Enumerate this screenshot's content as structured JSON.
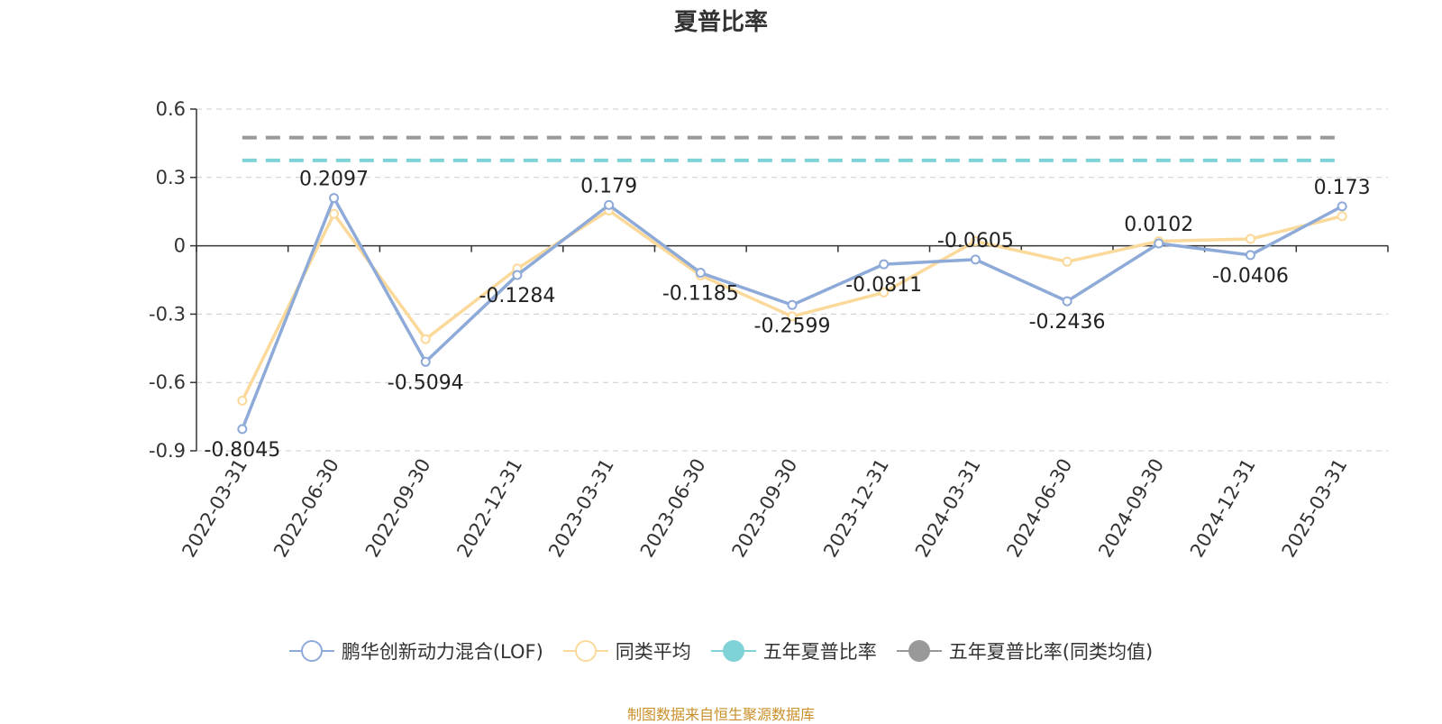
{
  "chart_data": {
    "type": "line",
    "title": "夏普比率",
    "categories": [
      "2022-03-31",
      "2022-06-30",
      "2022-09-30",
      "2022-12-31",
      "2023-03-31",
      "2023-06-30",
      "2023-09-30",
      "2023-12-31",
      "2024-03-31",
      "2024-06-30",
      "2024-09-30",
      "2024-12-31",
      "2025-03-31"
    ],
    "ylim": [
      -0.9,
      0.6
    ],
    "yticks": [
      "0.6",
      "0.3",
      "0",
      "-0.3",
      "-0.6",
      "-0.9"
    ],
    "grid": true,
    "legend_position": "bottom",
    "series": [
      {
        "name": "鹏华创新动力混合(LOF)",
        "kind": "line",
        "color": "#8eaad8",
        "values": [
          -0.8045,
          0.2097,
          -0.5094,
          -0.1284,
          0.179,
          -0.1185,
          -0.2599,
          -0.0811,
          -0.0605,
          -0.2436,
          0.0102,
          -0.0406,
          0.173
        ],
        "labels": [
          "-0.8045",
          "0.2097",
          "-0.5094",
          "-0.1284",
          "0.179",
          "-0.1185",
          "-0.2599",
          "-0.0811",
          "-0.0605",
          "-0.2436",
          "0.0102",
          "-0.0406",
          "0.173"
        ]
      },
      {
        "name": "同类平均",
        "kind": "line",
        "color": "#fbd99a",
        "values": [
          -0.68,
          0.14,
          -0.41,
          -0.1,
          0.155,
          -0.13,
          -0.31,
          -0.205,
          0.02,
          -0.07,
          0.02,
          0.03,
          0.13
        ]
      },
      {
        "name": "五年夏普比率",
        "kind": "dashed",
        "color": "#7fd3d6",
        "value": 0.375
      },
      {
        "name": "五年夏普比率(同类均值)",
        "kind": "dashed",
        "color": "#999999",
        "value": 0.475
      }
    ]
  },
  "source": "制图数据来自恒生聚源数据库"
}
